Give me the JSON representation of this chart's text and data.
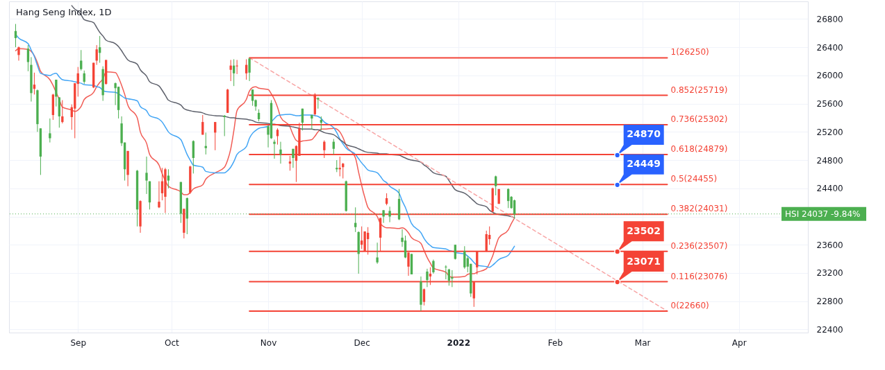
{
  "chart_data": {
    "type": "candlestick",
    "title": "Hang Seng Index, 1D",
    "x": [
      "2021-08-12",
      "2021-08-13",
      "2021-08-16",
      "2021-08-17",
      "2021-08-18",
      "2021-08-19",
      "2021-08-20",
      "2021-08-23",
      "2021-08-24",
      "2021-08-25",
      "2021-08-26",
      "2021-08-27",
      "2021-08-30",
      "2021-08-31",
      "2021-09-01",
      "2021-09-02",
      "2021-09-03",
      "2021-09-06",
      "2021-09-07",
      "2021-09-08",
      "2021-09-09",
      "2021-09-10",
      "2021-09-13",
      "2021-09-14",
      "2021-09-15",
      "2021-09-16",
      "2021-09-17",
      "2021-09-20",
      "2021-09-21",
      "2021-09-23",
      "2021-09-24",
      "2021-09-27",
      "2021-09-28",
      "2021-09-29",
      "2021-09-30",
      "2021-10-04",
      "2021-10-05",
      "2021-10-06",
      "2021-10-07",
      "2021-10-08",
      "2021-10-11",
      "2021-10-12",
      "2021-10-15",
      "2021-10-18",
      "2021-10-19",
      "2021-10-20",
      "2021-10-21",
      "2021-10-22",
      "2021-10-25",
      "2021-10-26",
      "2021-10-27",
      "2021-10-28",
      "2021-10-29",
      "2021-11-01",
      "2021-11-02",
      "2021-11-03",
      "2021-11-04",
      "2021-11-05",
      "2021-11-08",
      "2021-11-09",
      "2021-11-10",
      "2021-11-11",
      "2021-11-12",
      "2021-11-15",
      "2021-11-16",
      "2021-11-17",
      "2021-11-18",
      "2021-11-19",
      "2021-11-22",
      "2021-11-23",
      "2021-11-24",
      "2021-11-25",
      "2021-11-26",
      "2021-11-29",
      "2021-11-30",
      "2021-12-01",
      "2021-12-02",
      "2021-12-03",
      "2021-12-06",
      "2021-12-07",
      "2021-12-08",
      "2021-12-09",
      "2021-12-10",
      "2021-12-13",
      "2021-12-14",
      "2021-12-15",
      "2021-12-16",
      "2021-12-17",
      "2021-12-20",
      "2021-12-21",
      "2021-12-22",
      "2021-12-23",
      "2021-12-24",
      "2021-12-28",
      "2021-12-29",
      "2021-12-30",
      "2021-12-31",
      "2022-01-03",
      "2022-01-04",
      "2022-01-05",
      "2022-01-06",
      "2022-01-07",
      "2022-01-10",
      "2022-01-11",
      "2022-01-12",
      "2022-01-13",
      "2022-01-14",
      "2022-01-17",
      "2022-01-18",
      "2022-01-19"
    ],
    "ohlc": [
      [
        26630,
        26730,
        26400,
        26530
      ],
      [
        26290,
        26410,
        26210,
        26400
      ],
      [
        26380,
        26430,
        26060,
        26190
      ],
      [
        26150,
        26260,
        25630,
        25750
      ],
      [
        25810,
        26040,
        25730,
        25870
      ],
      [
        25790,
        25800,
        25200,
        25310
      ],
      [
        25250,
        25250,
        24590,
        24850
      ],
      [
        25180,
        25390,
        25050,
        25110
      ],
      [
        25440,
        25740,
        25370,
        25730
      ],
      [
        25940,
        25940,
        25560,
        25700
      ],
      [
        25690,
        25690,
        25260,
        25420
      ],
      [
        25340,
        25650,
        25320,
        25420
      ],
      [
        25410,
        25590,
        25230,
        25550
      ],
      [
        25530,
        25890,
        25110,
        25890
      ],
      [
        25880,
        26120,
        25700,
        26030
      ],
      [
        26210,
        26360,
        26070,
        26090
      ],
      [
        26030,
        26070,
        25880,
        25910
      ],
      [
        25830,
        26180,
        25820,
        26180
      ],
      [
        26210,
        26430,
        26150,
        26370
      ],
      [
        26400,
        26560,
        26180,
        26320
      ],
      [
        26090,
        26130,
        25640,
        25720
      ],
      [
        25880,
        26220,
        25870,
        26220
      ],
      [
        25890,
        25900,
        25580,
        25820
      ],
      [
        25840,
        25840,
        25390,
        25510
      ],
      [
        25320,
        25420,
        25000,
        25040
      ],
      [
        25050,
        25050,
        24510,
        24670
      ],
      [
        24590,
        24930,
        24430,
        24930
      ],
      [
        24650,
        24660,
        23860,
        24100
      ],
      [
        23860,
        24230,
        23770,
        24220
      ],
      [
        24620,
        24850,
        24320,
        24510
      ],
      [
        24500,
        24500,
        24100,
        24200
      ],
      [
        24130,
        24500,
        24120,
        24210
      ],
      [
        24330,
        24690,
        24230,
        24500
      ],
      [
        24280,
        24690,
        24050,
        24670
      ],
      [
        24580,
        24670,
        24400,
        24510
      ],
      [
        24490,
        24490,
        23910,
        24040
      ],
      [
        23770,
        24110,
        23690,
        24110
      ],
      [
        24260,
        24270,
        23750,
        23970
      ],
      [
        24340,
        24720,
        24320,
        24710
      ],
      [
        25070,
        25080,
        24610,
        24830
      ],
      [
        25160,
        25440,
        25160,
        25340
      ],
      [
        25000,
        25190,
        24880,
        24970
      ],
      [
        25190,
        25340,
        24940,
        25340
      ],
      [
        25430,
        25440,
        25140,
        25410
      ],
      [
        25470,
        25810,
        25470,
        25800
      ],
      [
        26080,
        26220,
        25920,
        26140
      ],
      [
        26140,
        26230,
        25850,
        26030
      ],
      [
        26130,
        26220,
        26020,
        26140
      ],
      [
        26030,
        26230,
        25940,
        26150
      ],
      [
        26240,
        26250,
        25920,
        26040
      ],
      [
        25800,
        25800,
        25570,
        25640
      ],
      [
        25650,
        25660,
        25500,
        25560
      ],
      [
        25470,
        25520,
        25350,
        25380
      ],
      [
        25280,
        25290,
        24980,
        25160
      ],
      [
        25610,
        25650,
        25100,
        25110
      ],
      [
        25060,
        25090,
        24820,
        25030
      ],
      [
        25140,
        25250,
        25020,
        25230
      ],
      [
        24950,
        25060,
        24750,
        24880
      ],
      [
        24750,
        24860,
        24650,
        24780
      ],
      [
        24960,
        24960,
        24690,
        24830
      ],
      [
        24790,
        25010,
        24490,
        25000
      ],
      [
        24860,
        25330,
        24860,
        25250
      ],
      [
        25530,
        25530,
        25220,
        25330
      ],
      [
        25440,
        25440,
        25230,
        25390
      ],
      [
        25450,
        25750,
        25430,
        25730
      ],
      [
        25680,
        25690,
        25530,
        25660
      ],
      [
        25370,
        25420,
        25220,
        25330
      ],
      [
        24940,
        25080,
        24830,
        25060
      ],
      [
        25060,
        25100,
        24880,
        24960
      ],
      [
        24690,
        24800,
        24630,
        24670
      ],
      [
        24670,
        24850,
        24570,
        24690
      ],
      [
        24700,
        24760,
        24540,
        24750
      ],
      [
        24500,
        24510,
        24070,
        24080
      ],
      [
        23910,
        24130,
        23780,
        23850
      ],
      [
        23780,
        23790,
        23190,
        23470
      ],
      [
        23600,
        23860,
        23540,
        23660
      ],
      [
        23510,
        23790,
        23510,
        23790
      ],
      [
        23680,
        23850,
        23460,
        23770
      ],
      [
        23420,
        23630,
        23330,
        23350
      ],
      [
        23700,
        23980,
        23510,
        23980
      ],
      [
        24090,
        24090,
        23910,
        24000
      ],
      [
        24180,
        24330,
        24160,
        24260
      ],
      [
        24080,
        24140,
        23920,
        24000
      ],
      [
        24250,
        24390,
        23950,
        23960
      ],
      [
        23700,
        23820,
        23570,
        23640
      ],
      [
        23660,
        23730,
        23410,
        23420
      ],
      [
        23290,
        23490,
        23160,
        23490
      ],
      [
        23470,
        23470,
        23180,
        23180
      ],
      [
        23080,
        23150,
        22660,
        22750
      ],
      [
        22790,
        22980,
        22740,
        22970
      ],
      [
        23220,
        23260,
        23000,
        23100
      ],
      [
        23150,
        23280,
        23030,
        23190
      ],
      [
        23370,
        23390,
        23190,
        23210
      ],
      [
        23290,
        23310,
        23110,
        23280
      ],
      [
        23250,
        23260,
        23020,
        23090
      ],
      [
        23140,
        23240,
        23000,
        23120
      ],
      [
        23600,
        23600,
        23390,
        23400
      ],
      [
        23510,
        23580,
        23260,
        23280
      ],
      [
        23410,
        23440,
        23210,
        23290
      ],
      [
        23330,
        23330,
        22860,
        22910
      ],
      [
        22840,
        23080,
        22720,
        23070
      ],
      [
        23280,
        23510,
        23180,
        23510
      ],
      [
        23510,
        23800,
        23500,
        23750
      ],
      [
        23680,
        23860,
        23600,
        23740
      ],
      [
        24070,
        24410,
        24060,
        24400
      ],
      [
        24570,
        24580,
        24300,
        24430
      ],
      [
        24180,
        24390,
        24180,
        24390
      ],
      [
        24390,
        24400,
        24120,
        24220
      ],
      [
        24280,
        24290,
        24110,
        24120
      ],
      [
        24230,
        24240,
        23970,
        24037
      ]
    ],
    "colors": [
      "#4caf50",
      "#f44336",
      "#4caf50",
      "#4caf50",
      "#f44336",
      "#4caf50",
      "#4caf50",
      "#4caf50",
      "#f44336",
      "#4caf50",
      "#4caf50",
      "#f44336",
      "#f44336",
      "#f44336",
      "#f44336",
      "#4caf50",
      "#4caf50",
      "#f44336",
      "#f44336",
      "#4caf50",
      "#4caf50",
      "#f44336",
      "#4caf50",
      "#4caf50",
      "#4caf50",
      "#4caf50",
      "#f44336",
      "#4caf50",
      "#f44336",
      "#4caf50",
      "#4caf50",
      "#f44336",
      "#f44336",
      "#f44336",
      "#4caf50",
      "#4caf50",
      "#f44336",
      "#4caf50",
      "#f44336",
      "#4caf50",
      "#f44336",
      "#4caf50",
      "#f44336",
      "#4caf50",
      "#f44336",
      "#f44336",
      "#4caf50",
      "#f44336",
      "#f44336",
      "#4caf50",
      "#4caf50",
      "#4caf50",
      "#4caf50",
      "#4caf50",
      "#4caf50",
      "#4caf50",
      "#f44336",
      "#4caf50",
      "#f44336",
      "#4caf50",
      "#f44336",
      "#f44336",
      "#4caf50",
      "#4caf50",
      "#f44336",
      "#4caf50",
      "#4caf50",
      "#f44336",
      "#4caf50",
      "#4caf50",
      "#f44336",
      "#f44336",
      "#4caf50",
      "#4caf50",
      "#4caf50",
      "#f44336",
      "#f44336",
      "#f44336",
      "#4caf50",
      "#f44336",
      "#4caf50",
      "#f44336",
      "#4caf50",
      "#4caf50",
      "#4caf50",
      "#4caf50",
      "#f44336",
      "#4caf50",
      "#4caf50",
      "#f44336",
      "#4caf50",
      "#f44336",
      "#4caf50",
      "#4caf50",
      "#4caf50",
      "#4caf50",
      "#4caf50",
      "#4caf50",
      "#4caf50",
      "#4caf50",
      "#f44336",
      "#f44336",
      "#f44336",
      "#f44336",
      "#f44336",
      "#4caf50",
      "#f44336",
      "#4caf50",
      "#4caf50",
      "#4caf50"
    ],
    "series": [
      {
        "type": "line",
        "color": "#f15c55",
        "values": [
          26350,
          26380,
          26370,
          26340,
          26280,
          26180,
          26060,
          25940,
          25860,
          25760,
          25660,
          25550,
          25510,
          25490,
          25510,
          25560,
          25660,
          25760,
          25840,
          25900,
          25950,
          26050,
          26040,
          25970,
          25860,
          25730,
          25580,
          25400,
          25200,
          25040,
          24880,
          24730,
          24610,
          24510,
          24430,
          24350,
          24310,
          24310,
          24340,
          24390,
          24450,
          24530,
          24620,
          24700,
          24800,
          24960,
          25220,
          25500,
          25660,
          25780,
          25830,
          25840,
          25820,
          25800,
          25740,
          25660,
          25550,
          25410,
          25270,
          25160,
          25080,
          25060,
          25070,
          25090,
          25140,
          25200,
          25240,
          25240,
          25250,
          25240,
          25200,
          25120,
          25010,
          24830,
          24630,
          24440,
          24270,
          24130,
          24000,
          23900,
          23860,
          23840,
          23840,
          23830,
          23840,
          23820,
          23770,
          23700,
          23620,
          23520,
          23420,
          23340,
          23270,
          23210,
          23160,
          23140,
          23140,
          23150,
          23180,
          23190,
          23190,
          23210,
          23260,
          23340,
          23440,
          23580,
          23700,
          23810,
          23900,
          23980
        ]
      },
      {
        "type": "line",
        "color": "#42a5f5",
        "values": [
          26580,
          26530,
          26450,
          26360,
          26270,
          26140,
          26030,
          26000,
          26020,
          26030,
          25980,
          25940,
          25920,
          25910,
          25900,
          25890,
          25870,
          25860,
          25840,
          25830,
          25790,
          25770,
          25760,
          25740,
          25710,
          25680,
          25670,
          25640,
          25560,
          25500,
          25430,
          25380,
          25340,
          25270,
          25200,
          25090,
          24990,
          24880,
          24800,
          24730,
          24700,
          24640,
          24620,
          24620,
          24650,
          24700,
          24780,
          24880,
          24990,
          25110,
          25180,
          25220,
          25250,
          25280,
          25340,
          25390,
          25430,
          25440,
          25450,
          25440,
          25430,
          25430,
          25440,
          25440,
          25430,
          25420,
          25390,
          25340,
          25260,
          25190,
          25100,
          25030,
          24970,
          24880,
          24820,
          24760,
          24710,
          24660,
          24620,
          24570,
          24510,
          24480,
          24430,
          24330,
          24220,
          24130,
          24010,
          23900,
          23770,
          23690,
          23630,
          23590,
          23560,
          23540,
          23520,
          23510,
          23490,
          23470,
          23440,
          23400,
          23350,
          23310,
          23290,
          23280,
          23310,
          23350,
          23390,
          23450,
          23510,
          23580
        ]
      },
      {
        "type": "line",
        "color": "#5d606b",
        "values": [
          null,
          null,
          null,
          null,
          null,
          null,
          null,
          null,
          null,
          null,
          null,
          null,
          26990,
          26940,
          26910,
          26860,
          26790,
          26750,
          26680,
          26610,
          26560,
          26500,
          26450,
          26410,
          26350,
          26280,
          26220,
          26160,
          26080,
          25990,
          25910,
          25850,
          25790,
          25720,
          25650,
          25580,
          25530,
          25510,
          25500,
          25490,
          25470,
          25450,
          25430,
          25420,
          25410,
          25400,
          25400,
          25390,
          25380,
          25370,
          25360,
          25340,
          25330,
          25320,
          25310,
          25310,
          25300,
          25290,
          25280,
          25270,
          25260,
          25250,
          25240,
          25240,
          25230,
          25230,
          25210,
          25190,
          25160,
          25130,
          25090,
          25060,
          25020,
          24980,
          24960,
          24940,
          24920,
          24910,
          24900,
          24890,
          24890,
          24890,
          24880,
          24870,
          24850,
          24830,
          24810,
          24800,
          24770,
          24730,
          24700,
          24660,
          24620,
          24570,
          24510,
          24440,
          24380,
          24330,
          24300,
          24260,
          24220,
          24180,
          24140,
          24090,
          24060,
          24040,
          24030,
          24010,
          24000,
          23980
        ]
      },
      {
        "type": "line",
        "color": "#f8a5a5",
        "line_style": "dashed",
        "x": [
          "2021-10-26",
          "2022-03-09"
        ],
        "values": [
          26250,
          22660
        ]
      },
      {
        "type": "line",
        "name": "1(26250)",
        "color": "#f44336",
        "x": [
          "2021-10-26",
          "2022-03-09"
        ],
        "values": [
          26250,
          26250
        ]
      },
      {
        "type": "line",
        "name": "0.852(25719)",
        "color": "#f44336",
        "x": [
          "2021-10-26",
          "2022-03-09"
        ],
        "values": [
          25719,
          25719
        ]
      },
      {
        "type": "line",
        "name": "0.736(25302)",
        "color": "#f44336",
        "x": [
          "2021-10-26",
          "2022-03-09"
        ],
        "values": [
          25302,
          25302
        ]
      },
      {
        "type": "line",
        "name": "0.618(24879)",
        "color": "#f44336",
        "x": [
          "2021-10-26",
          "2022-03-09"
        ],
        "values": [
          24879,
          24879
        ]
      },
      {
        "type": "line",
        "name": "0.5(24455)",
        "color": "#f44336",
        "x": [
          "2021-10-26",
          "2022-03-09"
        ],
        "values": [
          24455,
          24455
        ]
      },
      {
        "type": "line",
        "name": "0.382(24031)",
        "color": "#f44336",
        "x": [
          "2021-10-26",
          "2022-03-09"
        ],
        "values": [
          24031,
          24031
        ]
      },
      {
        "type": "line",
        "name": "0.236(23507)",
        "color": "#f44336",
        "x": [
          "2021-10-26",
          "2022-03-09"
        ],
        "values": [
          23507,
          23507
        ]
      },
      {
        "type": "line",
        "name": "0.116(23076)",
        "color": "#f44336",
        "x": [
          "2021-10-26",
          "2022-03-09"
        ],
        "values": [
          23076,
          23076
        ]
      },
      {
        "type": "line",
        "name": "0(22660)",
        "color": "#f44336",
        "x": [
          "2021-10-26",
          "2022-03-09"
        ],
        "values": [
          22660,
          22660
        ]
      },
      {
        "type": "scatter",
        "color": "#2962ff",
        "x": [
          "2022-02-21",
          "2022-02-21"
        ],
        "values": [
          24870,
          24449
        ],
        "value_labels": [
          "24870",
          "24449"
        ]
      },
      {
        "type": "scatter",
        "color": "#f44336",
        "x": [
          "2022-02-21",
          "2022-02-21"
        ],
        "values": [
          23502,
          23071
        ],
        "value_labels": [
          "23502",
          "23071"
        ]
      }
    ],
    "ref_lines": [
      {
        "axis": "y",
        "value": 24037,
        "label": "HSI 24037 -9.84%",
        "color": "#4caf50",
        "line_style": "dotted"
      }
    ],
    "xlim": [
      "2021-08-11",
      "2022-04-22"
    ],
    "xticks": [
      {
        "value": "2021-09-01",
        "label": "Sep"
      },
      {
        "value": "2021-10-01",
        "label": "Oct"
      },
      {
        "value": "2021-11-01",
        "label": "Nov"
      },
      {
        "value": "2021-12-01",
        "label": "Dec"
      },
      {
        "value": "2022-01-01",
        "label": "2022"
      },
      {
        "value": "2022-02-01",
        "label": "Feb"
      },
      {
        "value": "2022-03-01",
        "label": "Mar"
      },
      {
        "value": "2022-04-01",
        "label": "Apr"
      }
    ],
    "ylim": [
      22355,
      27050
    ],
    "yticks": [
      22400,
      22800,
      23200,
      23600,
      {
        "value": 24000,
        "label": null
      },
      24400,
      24800,
      25200,
      25600,
      26000,
      26400,
      26800
    ],
    "grid": true
  }
}
